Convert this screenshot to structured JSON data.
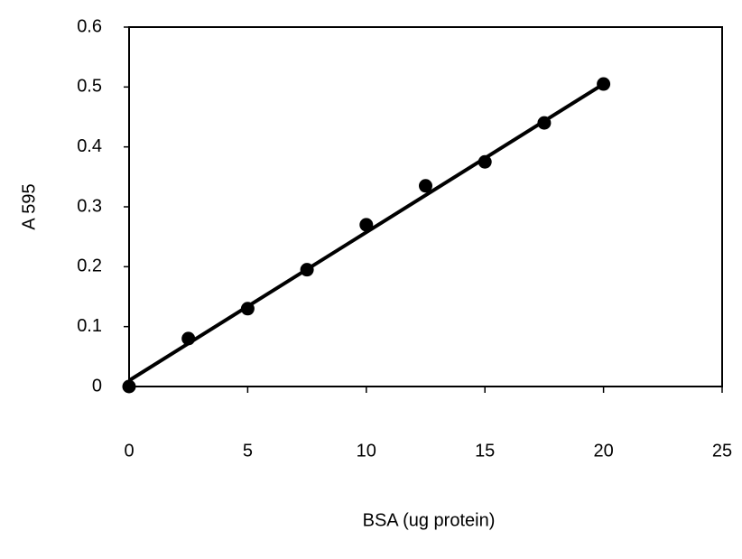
{
  "chart_data": {
    "type": "scatter",
    "x_label": "BSA (ug protein)",
    "y_label": "A 595",
    "x": [
      0,
      2.5,
      5,
      7.5,
      10,
      12.5,
      15,
      17.5,
      20
    ],
    "values": [
      0,
      0.08,
      0.13,
      0.195,
      0.27,
      0.335,
      0.375,
      0.44,
      0.505
    ],
    "color": "#000000",
    "trendline": {
      "x": [
        0,
        20
      ],
      "values": [
        0.01,
        0.505
      ]
    },
    "xlim": [
      0,
      25
    ],
    "xticks": [
      0,
      5,
      10,
      15,
      20,
      25
    ],
    "ylim": [
      0,
      0.6
    ],
    "yticks": [
      0,
      0.1,
      0.2,
      0.3,
      0.4,
      0.5,
      0.6
    ]
  }
}
